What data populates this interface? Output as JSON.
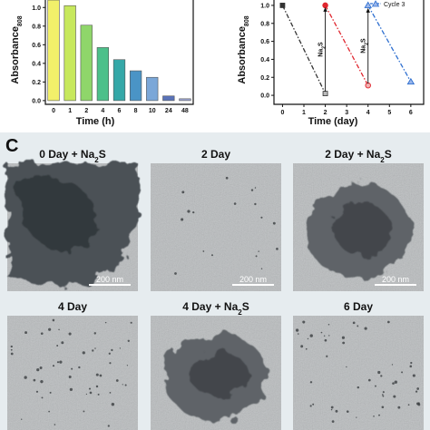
{
  "chart_data": [
    {
      "type": "bar",
      "categories": [
        "0",
        "1",
        "2",
        "4",
        "6",
        "8",
        "10",
        "24",
        "48"
      ],
      "values": [
        1.08,
        1.02,
        0.81,
        0.57,
        0.44,
        0.32,
        0.25,
        0.05,
        0.02
      ],
      "colors": [
        "#f2f06a",
        "#c7e85d",
        "#8fd66a",
        "#4cc08a",
        "#35a8a8",
        "#4a94c6",
        "#7ba7d8",
        "#5a73b8",
        "#9fa7d6"
      ],
      "xlabel": "Time (h)",
      "ylabel_main": "Absorbance",
      "ylabel_sub": "808",
      "yticks": [
        {
          "v": 0.0,
          "label": "0.0"
        },
        {
          "v": 0.2,
          "label": "0.2"
        },
        {
          "v": 0.4,
          "label": "0.4"
        },
        {
          "v": 0.6,
          "label": "0.6"
        },
        {
          "v": 0.8,
          "label": "0.8"
        },
        {
          "v": 1.0,
          "label": "1.0"
        }
      ],
      "ylim": [
        -0.04,
        1.1
      ]
    },
    {
      "type": "line",
      "xlabel": "Time (day)",
      "ylabel_main": "Absorbance",
      "ylabel_sub": "808",
      "xticks": [
        0,
        1,
        2,
        3,
        4,
        5,
        6
      ],
      "yticks": [
        {
          "v": 0.0,
          "label": "0.0"
        },
        {
          "v": 0.2,
          "label": "0.2"
        },
        {
          "v": 0.4,
          "label": "0.4"
        },
        {
          "v": 0.6,
          "label": "0.6"
        },
        {
          "v": 0.8,
          "label": "0.8"
        },
        {
          "v": 1.0,
          "label": "1.0"
        }
      ],
      "xlim": [
        -0.4,
        6.6
      ],
      "ylim": [
        -0.1,
        1.08
      ],
      "series": [
        {
          "x": [
            0,
            2
          ],
          "y": [
            1.0,
            0.02
          ],
          "color": "#333333",
          "marker": "square"
        },
        {
          "x": [
            2,
            4
          ],
          "y": [
            1.0,
            0.11
          ],
          "color": "#e0262f",
          "marker": "circle"
        },
        {
          "x": [
            4,
            6
          ],
          "y": [
            1.0,
            0.15
          ],
          "color": "#2e6fd0",
          "marker": "triangle"
        }
      ],
      "na2s_arrows": [
        {
          "x": 2,
          "y_from": 0.04,
          "y_to": 0.98
        },
        {
          "x": 4,
          "y_from": 0.13,
          "y_to": 0.97
        }
      ],
      "annotation_main": "Na",
      "annotation_sub": "2",
      "annotation_tail": "S",
      "legend_label": "Cycle 3",
      "legend_color": "#2e6fd0"
    }
  ],
  "panel_c": {
    "letter": "C",
    "scale_bar_label": "200 nm",
    "images": [
      {
        "label_main": "0 Day + Na",
        "label_sub": "2",
        "label_tail": "S",
        "kind": "large",
        "scale": true
      },
      {
        "label_main": "2 Day",
        "label_sub": "",
        "label_tail": "",
        "kind": "blank",
        "scale": true
      },
      {
        "label_main": "2 Day + Na",
        "label_sub": "2",
        "label_tail": "S",
        "kind": "cluster",
        "scale": true
      },
      {
        "label_main": "4 Day",
        "label_sub": "",
        "label_tail": "",
        "kind": "sparse",
        "scale": false
      },
      {
        "label_main": "4 Day + Na",
        "label_sub": "2",
        "label_tail": "S",
        "kind": "cluster",
        "scale": false
      },
      {
        "label_main": "6 Day",
        "label_sub": "",
        "label_tail": "",
        "kind": "sparse",
        "scale": false
      }
    ]
  },
  "colors": {
    "tem_background": "#b9bcbe",
    "panel_c_background": "#e6ecef"
  }
}
